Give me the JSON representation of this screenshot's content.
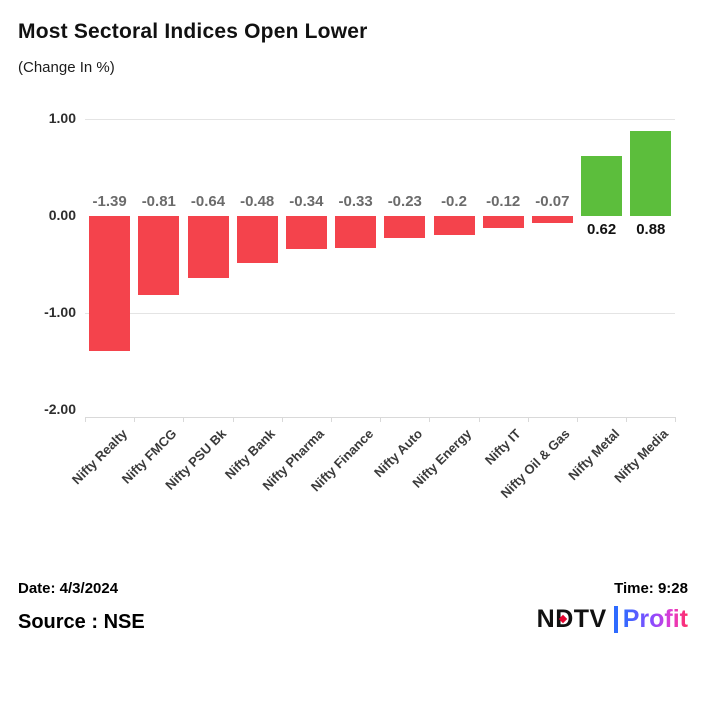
{
  "header": {
    "title": "Most Sectoral Indices Open Lower",
    "subtitle": "(Change In %)"
  },
  "chart_data": {
    "type": "bar",
    "title": "Most Sectoral Indices Open Lower",
    "subtitle": "(Change In %)",
    "categories": [
      "Nifty Realty",
      "Nifty FMCG",
      "Nifty PSU Bk",
      "Nifty Bank",
      "Nifty Pharma",
      "Nifty Finance",
      "Nifty Auto",
      "Nifty Energy",
      "Nifty IT",
      "Nifty Oil & Gas",
      "Nifty Metal",
      "Nifty Media"
    ],
    "values": [
      -1.39,
      -0.81,
      -0.64,
      -0.48,
      -0.34,
      -0.33,
      -0.23,
      -0.2,
      -0.12,
      -0.07,
      0.62,
      0.88
    ],
    "data_labels": [
      "-1.39",
      "-0.81",
      "-0.64",
      "-0.48",
      "-0.34",
      "-0.33",
      "-0.23",
      "-0.2",
      "-0.12",
      "-0.07",
      "0.62",
      "0.88"
    ],
    "yticks": [
      {
        "label": "1.00",
        "value": 1
      },
      {
        "label": "0.00",
        "value": 0
      },
      {
        "label": "-1.00",
        "value": -1
      },
      {
        "label": "-2.00",
        "value": -2
      }
    ],
    "gridline_values": [
      1,
      -1
    ],
    "ylim": [
      -2.07,
      1.0
    ],
    "xlabel": "",
    "ylabel": "(Change In %)",
    "legend": "none",
    "colors": {
      "negative_bar": "#f4434c",
      "positive_bar": "#5cbe3c",
      "negative_label": "#6b6b6b",
      "positive_label": "#111111",
      "grid": "#e4e4e4",
      "axis": "#d9d9d9"
    }
  },
  "footer": {
    "date": "Date: 4/3/2024",
    "time": "Time: 9:28",
    "source": "Source : NSE",
    "logo": {
      "ndtv_n": "N",
      "ndtv_d": "D",
      "ndtv_tv": "TV",
      "profit": "Profit",
      "separator_color": "#2e6bff",
      "dot_color": "#e4032e"
    }
  }
}
